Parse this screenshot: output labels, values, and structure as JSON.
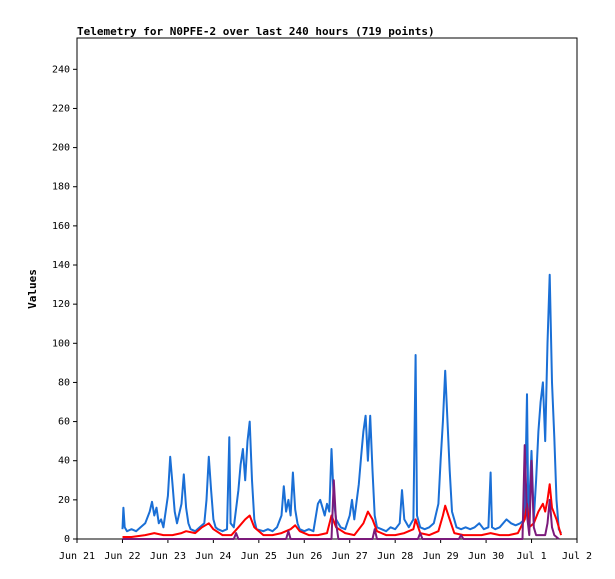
{
  "chart_data": {
    "type": "line",
    "title": "Telemetry for N0PFE-2 over last 240 hours (719 points)",
    "xlabel": "",
    "ylabel": "Values",
    "xlim": [
      0,
      11
    ],
    "ylim": [
      0,
      256
    ],
    "x_ticks": [
      "Jun 21",
      "Jun 22",
      "Jun 23",
      "Jun 24",
      "Jun 25",
      "Jun 26",
      "Jun 27",
      "Jun 28",
      "Jun 29",
      "Jun 30",
      "Jul 1",
      "Jul 2"
    ],
    "y_ticks": [
      0,
      20,
      40,
      60,
      80,
      100,
      120,
      140,
      160,
      180,
      200,
      220,
      240
    ],
    "grid": false,
    "legend": "none",
    "colors": {
      "blue": "#1a6fd6",
      "red": "#ff0000",
      "purple": "#7b1a7b"
    },
    "series": [
      {
        "color": "#1a6fd6",
        "points": [
          [
            1.0,
            5
          ],
          [
            1.02,
            16
          ],
          [
            1.05,
            6
          ],
          [
            1.1,
            4
          ],
          [
            1.2,
            5
          ],
          [
            1.3,
            4
          ],
          [
            1.4,
            6
          ],
          [
            1.5,
            8
          ],
          [
            1.6,
            14
          ],
          [
            1.65,
            19
          ],
          [
            1.7,
            12
          ],
          [
            1.75,
            16
          ],
          [
            1.8,
            8
          ],
          [
            1.85,
            10
          ],
          [
            1.9,
            6
          ],
          [
            2.0,
            22
          ],
          [
            2.05,
            42
          ],
          [
            2.1,
            28
          ],
          [
            2.15,
            14
          ],
          [
            2.2,
            8
          ],
          [
            2.3,
            18
          ],
          [
            2.35,
            33
          ],
          [
            2.4,
            16
          ],
          [
            2.45,
            8
          ],
          [
            2.5,
            5
          ],
          [
            2.6,
            4
          ],
          [
            2.7,
            6
          ],
          [
            2.8,
            8
          ],
          [
            2.85,
            20
          ],
          [
            2.9,
            42
          ],
          [
            2.95,
            25
          ],
          [
            3.0,
            10
          ],
          [
            3.05,
            6
          ],
          [
            3.1,
            5
          ],
          [
            3.2,
            4
          ],
          [
            3.3,
            5
          ],
          [
            3.35,
            52
          ],
          [
            3.38,
            8
          ],
          [
            3.45,
            6
          ],
          [
            3.55,
            25
          ],
          [
            3.6,
            38
          ],
          [
            3.65,
            46
          ],
          [
            3.7,
            30
          ],
          [
            3.75,
            50
          ],
          [
            3.8,
            60
          ],
          [
            3.85,
            30
          ],
          [
            3.9,
            10
          ],
          [
            3.95,
            5
          ],
          [
            4.1,
            4
          ],
          [
            4.2,
            5
          ],
          [
            4.3,
            4
          ],
          [
            4.4,
            6
          ],
          [
            4.5,
            12
          ],
          [
            4.55,
            27
          ],
          [
            4.6,
            14
          ],
          [
            4.65,
            20
          ],
          [
            4.7,
            12
          ],
          [
            4.75,
            34
          ],
          [
            4.8,
            15
          ],
          [
            4.85,
            8
          ],
          [
            4.9,
            5
          ],
          [
            5.0,
            4
          ],
          [
            5.1,
            5
          ],
          [
            5.2,
            4
          ],
          [
            5.3,
            18
          ],
          [
            5.35,
            20
          ],
          [
            5.4,
            16
          ],
          [
            5.45,
            12
          ],
          [
            5.5,
            18
          ],
          [
            5.55,
            14
          ],
          [
            5.6,
            46
          ],
          [
            5.65,
            20
          ],
          [
            5.7,
            10
          ],
          [
            5.8,
            6
          ],
          [
            5.9,
            5
          ],
          [
            6.0,
            12
          ],
          [
            6.05,
            20
          ],
          [
            6.1,
            10
          ],
          [
            6.2,
            28
          ],
          [
            6.25,
            42
          ],
          [
            6.3,
            55
          ],
          [
            6.35,
            63
          ],
          [
            6.4,
            40
          ],
          [
            6.45,
            63
          ],
          [
            6.5,
            35
          ],
          [
            6.55,
            12
          ],
          [
            6.6,
            6
          ],
          [
            6.7,
            5
          ],
          [
            6.8,
            4
          ],
          [
            6.9,
            6
          ],
          [
            7.0,
            5
          ],
          [
            7.1,
            8
          ],
          [
            7.15,
            25
          ],
          [
            7.2,
            10
          ],
          [
            7.3,
            6
          ],
          [
            7.4,
            10
          ],
          [
            7.45,
            94
          ],
          [
            7.48,
            12
          ],
          [
            7.55,
            6
          ],
          [
            7.65,
            5
          ],
          [
            7.75,
            6
          ],
          [
            7.85,
            8
          ],
          [
            7.95,
            18
          ],
          [
            8.0,
            40
          ],
          [
            8.05,
            60
          ],
          [
            8.1,
            86
          ],
          [
            8.15,
            60
          ],
          [
            8.2,
            35
          ],
          [
            8.25,
            14
          ],
          [
            8.35,
            6
          ],
          [
            8.45,
            5
          ],
          [
            8.55,
            6
          ],
          [
            8.65,
            5
          ],
          [
            8.75,
            6
          ],
          [
            8.85,
            8
          ],
          [
            8.95,
            5
          ],
          [
            9.05,
            6
          ],
          [
            9.1,
            34
          ],
          [
            9.13,
            6
          ],
          [
            9.2,
            5
          ],
          [
            9.3,
            6
          ],
          [
            9.45,
            10
          ],
          [
            9.55,
            8
          ],
          [
            9.65,
            7
          ],
          [
            9.75,
            8
          ],
          [
            9.85,
            10
          ],
          [
            9.9,
            74
          ],
          [
            9.93,
            8
          ],
          [
            10.0,
            45
          ],
          [
            10.05,
            10
          ],
          [
            10.1,
            30
          ],
          [
            10.15,
            55
          ],
          [
            10.2,
            70
          ],
          [
            10.25,
            80
          ],
          [
            10.3,
            50
          ],
          [
            10.35,
            100
          ],
          [
            10.4,
            135
          ],
          [
            10.45,
            80
          ],
          [
            10.5,
            52
          ],
          [
            10.55,
            20
          ],
          [
            10.6,
            5
          ],
          [
            10.65,
            3
          ]
        ]
      },
      {
        "color": "#ff0000",
        "points": [
          [
            1.0,
            1
          ],
          [
            1.2,
            1
          ],
          [
            1.5,
            2
          ],
          [
            1.7,
            3
          ],
          [
            1.9,
            2
          ],
          [
            2.1,
            2
          ],
          [
            2.3,
            3
          ],
          [
            2.4,
            4
          ],
          [
            2.6,
            3
          ],
          [
            2.75,
            6
          ],
          [
            2.9,
            8
          ],
          [
            3.0,
            5
          ],
          [
            3.2,
            2
          ],
          [
            3.4,
            2
          ],
          [
            3.55,
            6
          ],
          [
            3.7,
            10
          ],
          [
            3.8,
            12
          ],
          [
            3.9,
            6
          ],
          [
            4.1,
            2
          ],
          [
            4.3,
            2
          ],
          [
            4.5,
            3
          ],
          [
            4.7,
            5
          ],
          [
            4.8,
            7
          ],
          [
            4.9,
            4
          ],
          [
            5.1,
            2
          ],
          [
            5.3,
            2
          ],
          [
            5.5,
            3
          ],
          [
            5.6,
            12
          ],
          [
            5.7,
            6
          ],
          [
            5.9,
            3
          ],
          [
            6.1,
            2
          ],
          [
            6.3,
            8
          ],
          [
            6.4,
            14
          ],
          [
            6.5,
            10
          ],
          [
            6.6,
            4
          ],
          [
            6.8,
            2
          ],
          [
            7.0,
            2
          ],
          [
            7.2,
            3
          ],
          [
            7.4,
            5
          ],
          [
            7.45,
            10
          ],
          [
            7.55,
            3
          ],
          [
            7.75,
            2
          ],
          [
            7.95,
            4
          ],
          [
            8.05,
            12
          ],
          [
            8.1,
            17
          ],
          [
            8.2,
            10
          ],
          [
            8.3,
            3
          ],
          [
            8.5,
            2
          ],
          [
            8.7,
            2
          ],
          [
            8.9,
            2
          ],
          [
            9.1,
            3
          ],
          [
            9.3,
            2
          ],
          [
            9.5,
            2
          ],
          [
            9.7,
            3
          ],
          [
            9.85,
            10
          ],
          [
            9.9,
            18
          ],
          [
            9.95,
            6
          ],
          [
            10.05,
            8
          ],
          [
            10.15,
            14
          ],
          [
            10.25,
            18
          ],
          [
            10.3,
            14
          ],
          [
            10.35,
            20
          ],
          [
            10.4,
            28
          ],
          [
            10.45,
            16
          ],
          [
            10.55,
            10
          ],
          [
            10.65,
            2
          ]
        ]
      },
      {
        "color": "#7b1a7b",
        "points": [
          [
            1.0,
            0
          ],
          [
            3.45,
            0
          ],
          [
            3.5,
            3
          ],
          [
            3.55,
            0
          ],
          [
            4.6,
            0
          ],
          [
            4.65,
            4
          ],
          [
            4.7,
            0
          ],
          [
            5.6,
            0
          ],
          [
            5.65,
            30
          ],
          [
            5.7,
            8
          ],
          [
            5.75,
            0
          ],
          [
            6.5,
            0
          ],
          [
            6.55,
            5
          ],
          [
            6.6,
            0
          ],
          [
            7.5,
            0
          ],
          [
            7.55,
            3
          ],
          [
            7.6,
            0
          ],
          [
            8.4,
            0
          ],
          [
            8.45,
            2
          ],
          [
            8.5,
            0
          ],
          [
            9.8,
            0
          ],
          [
            9.85,
            48
          ],
          [
            9.9,
            12
          ],
          [
            9.95,
            2
          ],
          [
            10.0,
            40
          ],
          [
            10.05,
            6
          ],
          [
            10.1,
            2
          ],
          [
            10.3,
            2
          ],
          [
            10.35,
            8
          ],
          [
            10.4,
            20
          ],
          [
            10.45,
            6
          ],
          [
            10.5,
            2
          ],
          [
            10.6,
            0
          ]
        ]
      }
    ]
  }
}
